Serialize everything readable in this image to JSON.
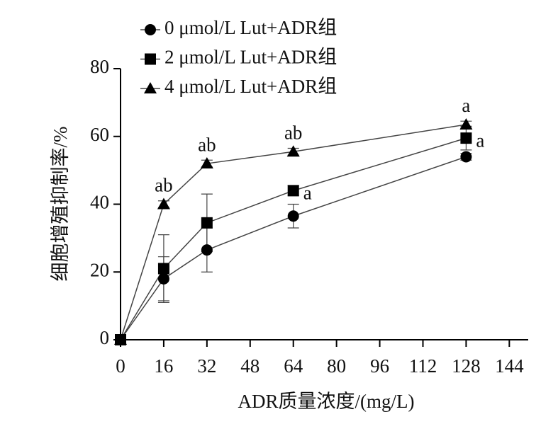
{
  "chart_data": {
    "type": "line",
    "x_label": "ADR质量浓度/(mg/L)",
    "y_label": "细胞增殖抑制率/%",
    "x": [
      0,
      16,
      32,
      64,
      128
    ],
    "series": [
      {
        "name": "0 μmol/L Lut+ADR组",
        "color": "#000000",
        "marker": "circle",
        "values": [
          0,
          18,
          26.5,
          36.5,
          54
        ],
        "errors": [
          0,
          6.5,
          6.5,
          3.5,
          1
        ],
        "labels": [
          null,
          null,
          null,
          null,
          null
        ]
      },
      {
        "name": "2 μmol/L Lut+ADR组",
        "color": "#000000",
        "marker": "square",
        "values": [
          0,
          21,
          34.5,
          44,
          59.5
        ],
        "errors": [
          0,
          10,
          8.5,
          1.5,
          3.5
        ],
        "labels": [
          null,
          null,
          null,
          "a",
          "a"
        ]
      },
      {
        "name": "4 μmol/L Lut+ADR组",
        "color": "#000000",
        "marker": "triangle",
        "values": [
          0,
          40,
          52,
          55.5,
          63.5
        ],
        "errors": [
          0,
          1,
          1,
          1,
          1
        ],
        "labels": [
          null,
          "ab",
          "ab",
          "ab",
          "a"
        ]
      }
    ],
    "xlim": [
      0,
      151
    ],
    "xticks": [
      0,
      16,
      32,
      48,
      64,
      80,
      96,
      112,
      128,
      144
    ],
    "ylim": [
      0,
      80
    ],
    "yticks": [
      0,
      20,
      40,
      60,
      80
    ],
    "legend": "top-left"
  }
}
